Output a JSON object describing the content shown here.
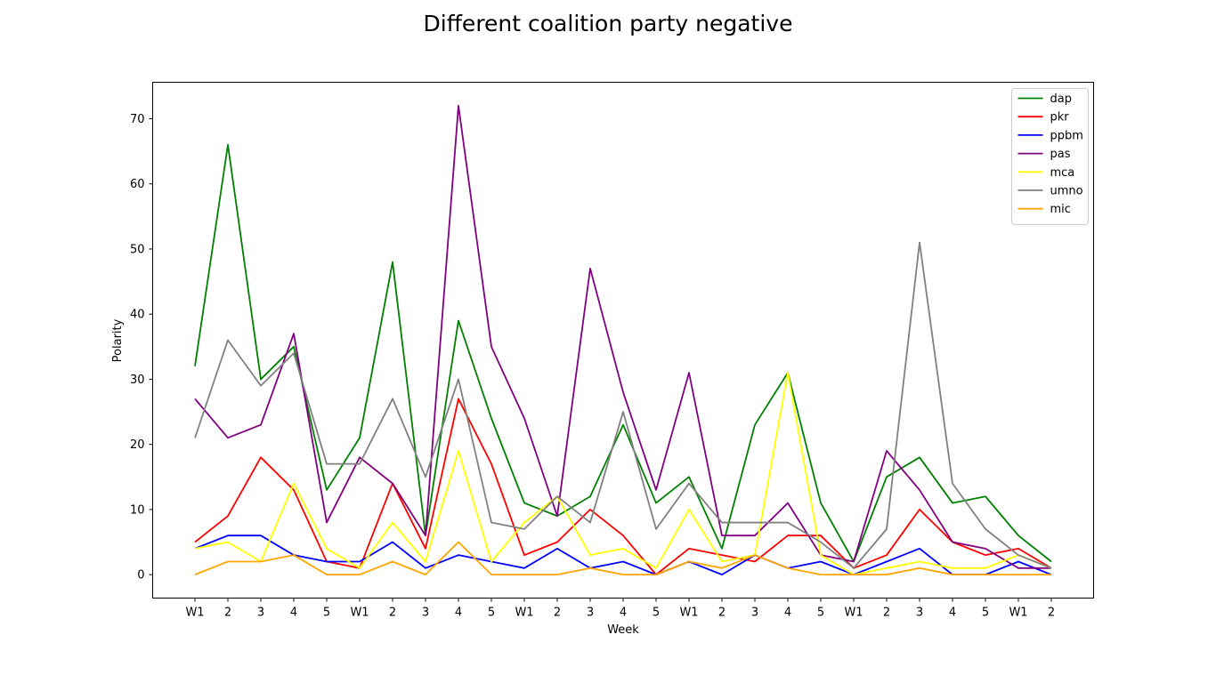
{
  "chart_data": {
    "type": "line",
    "title": "Different coalition party negative",
    "xlabel": "Week",
    "ylabel": "Polarity",
    "categories": [
      "W1",
      "2",
      "3",
      "4",
      "5",
      "W1",
      "2",
      "3",
      "4",
      "5",
      "W1",
      "2",
      "3",
      "4",
      "5",
      "W1",
      "2",
      "3",
      "4",
      "5",
      "W1",
      "2",
      "3",
      "4",
      "5",
      "W1",
      "2"
    ],
    "ylim": [
      -3.6,
      75.6
    ],
    "yticks": [
      0,
      10,
      20,
      30,
      40,
      50,
      60,
      70
    ],
    "grid": false,
    "legend_position": "top-right",
    "series": [
      {
        "name": "dap",
        "color": "#008000",
        "values": [
          32,
          66,
          30,
          35,
          13,
          21,
          48,
          6,
          39,
          24,
          11,
          9,
          12,
          23,
          11,
          15,
          4,
          23,
          31,
          11,
          2,
          15,
          18,
          11,
          12,
          6,
          2
        ]
      },
      {
        "name": "pkr",
        "color": "#ff0000",
        "values": [
          5,
          9,
          18,
          13,
          2,
          1,
          14,
          4,
          27,
          17,
          3,
          5,
          10,
          6,
          0,
          4,
          3,
          2,
          6,
          6,
          1,
          3,
          10,
          5,
          3,
          4,
          1
        ]
      },
      {
        "name": "ppbm",
        "color": "#0000ff",
        "values": [
          4,
          6,
          6,
          3,
          2,
          2,
          5,
          1,
          3,
          2,
          1,
          4,
          1,
          2,
          0,
          2,
          0,
          3,
          1,
          2,
          0,
          2,
          4,
          0,
          0,
          2,
          0
        ]
      },
      {
        "name": "pas",
        "color": "#800080",
        "values": [
          27,
          21,
          23,
          37,
          8,
          18,
          14,
          6,
          72,
          35,
          24,
          9,
          47,
          28,
          13,
          31,
          6,
          6,
          11,
          3,
          2,
          19,
          13,
          5,
          4,
          1,
          1
        ]
      },
      {
        "name": "mca",
        "color": "#ffff00",
        "values": [
          4,
          5,
          2,
          14,
          4,
          1,
          8,
          2,
          19,
          2,
          8,
          12,
          3,
          4,
          1,
          10,
          2,
          3,
          31,
          3,
          0,
          1,
          2,
          1,
          1,
          3,
          1
        ]
      },
      {
        "name": "umno",
        "color": "#808080",
        "values": [
          21,
          36,
          29,
          34,
          17,
          17,
          27,
          15,
          30,
          8,
          7,
          12,
          8,
          25,
          7,
          14,
          8,
          8,
          8,
          5,
          1,
          7,
          51,
          14,
          7,
          3,
          1
        ]
      },
      {
        "name": "mic",
        "color": "#ffa500",
        "values": [
          0,
          2,
          2,
          3,
          0,
          0,
          2,
          0,
          5,
          0,
          0,
          0,
          1,
          0,
          0,
          2,
          1,
          3,
          1,
          0,
          0,
          0,
          1,
          0,
          0,
          0,
          0
        ]
      }
    ]
  }
}
